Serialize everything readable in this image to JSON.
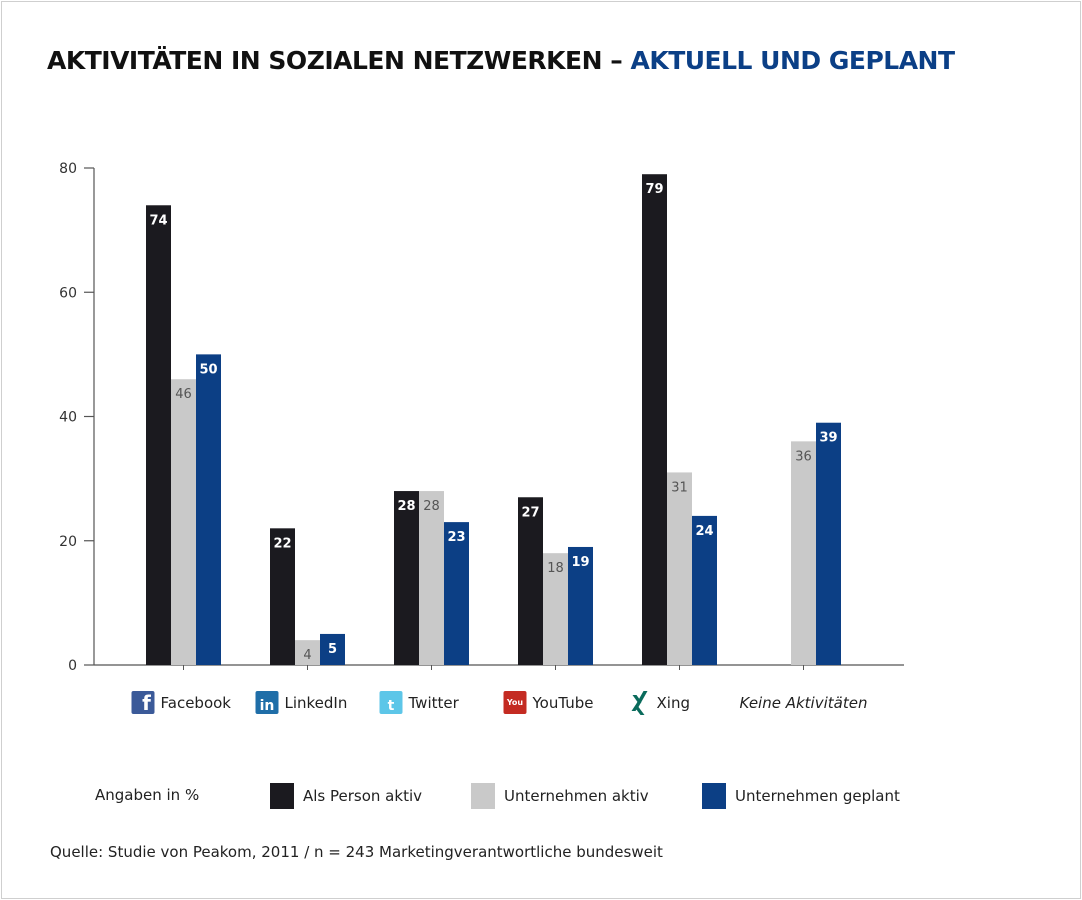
{
  "title": {
    "main": "AKTIVITÄTEN IN SOZIALEN NETZWERKEN – ",
    "accent": "AKTUELL UND GEPLANT"
  },
  "colors": {
    "als_person_aktiv": "#1b1a1f",
    "unternehmen_aktiv": "#c9c9c9",
    "unternehmen_geplant": "#0c3f85",
    "title_accent": "#0b3f86"
  },
  "chart_data": {
    "type": "bar",
    "categories": [
      "Facebook",
      "LinkedIn",
      "Twitter",
      "YouTube",
      "Xing",
      "Keine Aktivitäten"
    ],
    "category_icons": [
      "facebook-icon",
      "linkedin-icon",
      "twitter-icon",
      "youtube-icon",
      "xing-icon",
      null
    ],
    "series": [
      {
        "name": "Als Person aktiv",
        "values": [
          74,
          22,
          28,
          27,
          79,
          null
        ]
      },
      {
        "name": "Unternehmen aktiv",
        "values": [
          46,
          4,
          28,
          18,
          31,
          36
        ]
      },
      {
        "name": "Unternehmen geplant",
        "values": [
          50,
          5,
          23,
          19,
          24,
          39
        ]
      }
    ],
    "ylim": [
      0,
      80
    ],
    "yticks": [
      0,
      20,
      40,
      60,
      80
    ],
    "grid": false,
    "legend_placement": "bottom",
    "legend_note": "Angaben in %"
  },
  "source": "Quelle: Studie von Peakom, 2011 / n = 243 Marketingverantwortliche bundesweit"
}
